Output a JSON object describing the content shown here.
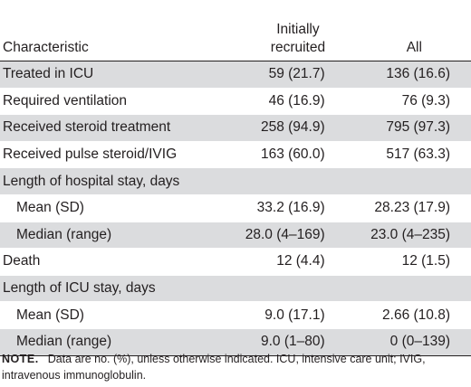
{
  "table": {
    "headers": {
      "characteristic": "Characteristic",
      "initially_line1": "Initially",
      "initially_line2": "recruited",
      "all": "All"
    },
    "rows": [
      {
        "label": "Treated in ICU",
        "initially": "59 (21.7)",
        "all": "136 (16.6)",
        "indent": false
      },
      {
        "label": "Required ventilation",
        "initially": "46 (16.9)",
        "all": "76 (9.3)",
        "indent": false
      },
      {
        "label": "Received steroid treatment",
        "initially": "258 (94.9)",
        "all": "795 (97.3)",
        "indent": false
      },
      {
        "label": "Received pulse steroid/IVIG",
        "initially": "163 (60.0)",
        "all": "517 (63.3)",
        "indent": false
      },
      {
        "label": "Length of hospital stay, days",
        "initially": "",
        "all": "",
        "indent": false
      },
      {
        "label": "Mean (SD)",
        "initially": "33.2 (16.9)",
        "all": "28.23 (17.9)",
        "indent": true
      },
      {
        "label": "Median (range)",
        "initially": "28.0 (4–169)",
        "all": "23.0 (4–235)",
        "indent": true
      },
      {
        "label": "Death",
        "initially": "12 (4.4)",
        "all": "12 (1.5)",
        "indent": false
      },
      {
        "label": "Length of ICU stay, days",
        "initially": "",
        "all": "",
        "indent": false
      },
      {
        "label": "Mean (SD)",
        "initially": "9.0 (17.1)",
        "all": "2.66 (10.8)",
        "indent": true
      },
      {
        "label": "Median (range)",
        "initially": "9.0 (1–80)",
        "all": "0 (0–139)",
        "indent": true
      }
    ]
  },
  "note": {
    "label": "NOTE.",
    "text": "Data are no. (%), unless otherwise indicated. ICU, intensive care unit; IVIG, intravenous immunoglobulin."
  },
  "colors": {
    "row_shade": "#dbdcde",
    "text": "#231f20"
  }
}
